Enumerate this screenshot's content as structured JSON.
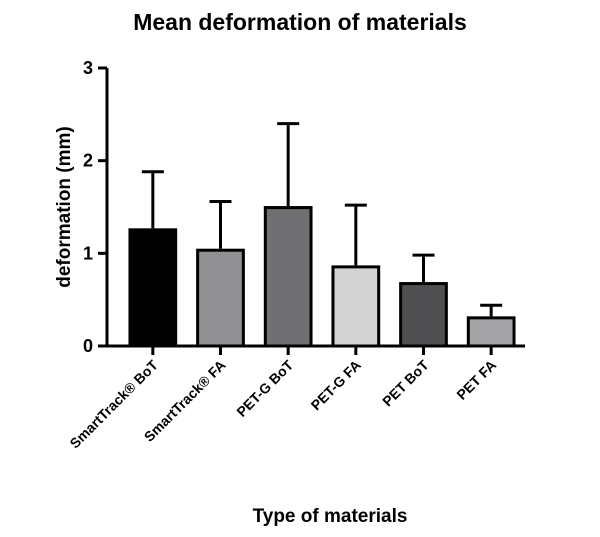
{
  "chart_data": {
    "type": "bar",
    "title": "Mean deformation of materials",
    "xlabel": "Type of materials",
    "ylabel": "deformation (mm)",
    "ylim": [
      0,
      3
    ],
    "yticks": [
      "0",
      "1",
      "2",
      "3"
    ],
    "grid": false,
    "categories": [
      "SmartTrack® BoT",
      "SmartTrack® FA",
      "PET-G BoT",
      "PET-G FA",
      "PET BoT",
      "PET FA"
    ],
    "values": [
      1.27,
      1.05,
      1.51,
      0.87,
      0.69,
      0.32
    ],
    "error_upper": [
      0.61,
      0.51,
      0.89,
      0.65,
      0.29,
      0.12
    ],
    "colors": [
      "#000000",
      "#909093",
      "#707072",
      "#d2d2d3",
      "#4f4f51",
      "#a4a4a6"
    ]
  }
}
